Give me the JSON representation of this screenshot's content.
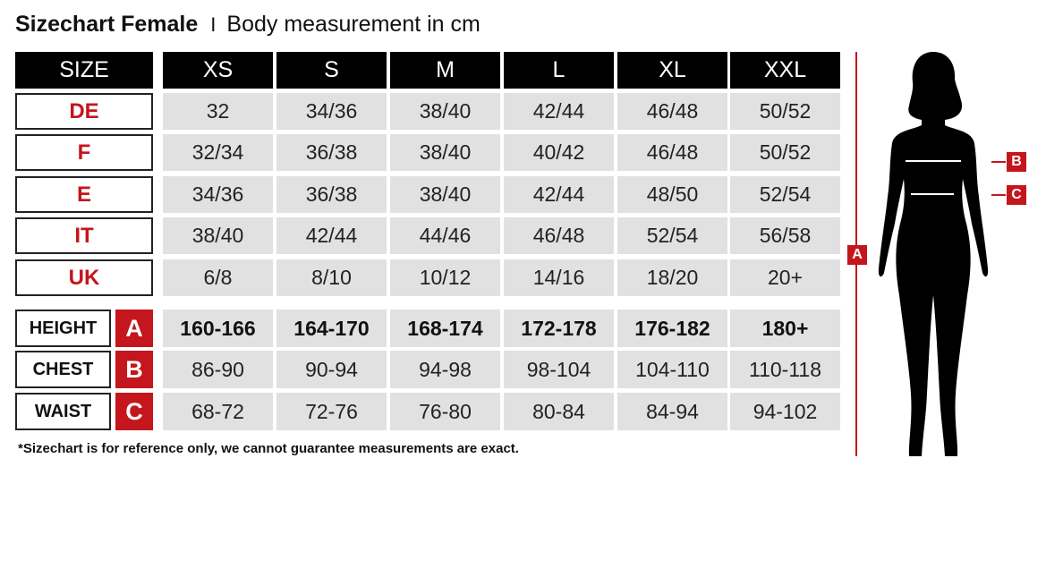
{
  "title": {
    "main": "Sizechart Female",
    "separator": "I",
    "subtitle": "Body measurement in cm"
  },
  "header": {
    "label": "SIZE",
    "sizes": [
      "XS",
      "S",
      "M",
      "L",
      "XL",
      "XXL"
    ]
  },
  "size_rows": [
    {
      "label": "DE",
      "values": [
        "32",
        "34/36",
        "38/40",
        "42/44",
        "46/48",
        "50/52"
      ]
    },
    {
      "label": "F",
      "values": [
        "32/34",
        "36/38",
        "38/40",
        "40/42",
        "46/48",
        "50/52"
      ]
    },
    {
      "label": "E",
      "values": [
        "34/36",
        "36/38",
        "38/40",
        "42/44",
        "48/50",
        "52/54"
      ]
    },
    {
      "label": "IT",
      "values": [
        "38/40",
        "42/44",
        "44/46",
        "46/48",
        "52/54",
        "56/58"
      ]
    },
    {
      "label": "UK",
      "values": [
        "6/8",
        "8/10",
        "10/12",
        "14/16",
        "18/20",
        "20+"
      ]
    }
  ],
  "measure_rows": [
    {
      "label": "HEIGHT",
      "key": "A",
      "values": [
        "160-166",
        "164-170",
        "168-174",
        "172-178",
        "176-182",
        "180+"
      ]
    },
    {
      "label": "CHEST",
      "key": "B",
      "values": [
        "86-90",
        "90-94",
        "94-98",
        "98-104",
        "104-110",
        "110-118"
      ]
    },
    {
      "label": "WAIST",
      "key": "C",
      "values": [
        "68-72",
        "72-76",
        "76-80",
        "80-84",
        "84-94",
        "94-102"
      ]
    }
  ],
  "figure": {
    "height_marker": "A",
    "chest_marker": "B",
    "waist_marker": "C"
  },
  "footnote": "*Sizechart is for reference only, we cannot guarantee measurements are exact.",
  "colors": {
    "accent_red": "#c4161c",
    "header_black": "#000000",
    "cell_gray": "#e1e1e1"
  }
}
